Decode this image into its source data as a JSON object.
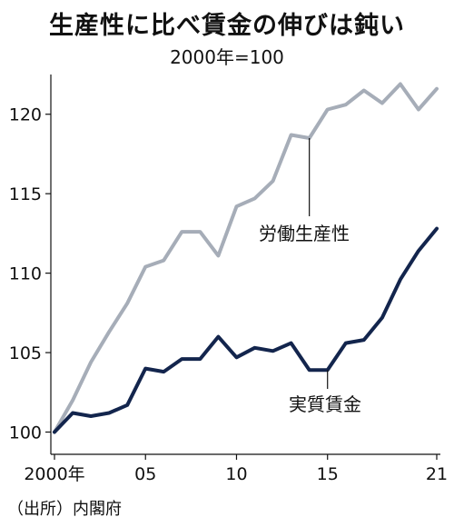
{
  "title": "生産性に比べ賃金の伸びは鈍い",
  "subtitle": "2000年=100",
  "source": "（出所）内閣府",
  "chart_data": {
    "type": "line",
    "title": "生産性に比べ賃金の伸びは鈍い",
    "subtitle": "2000年=100",
    "xlabel": "",
    "ylabel": "",
    "x": [
      2000,
      2001,
      2002,
      2003,
      2004,
      2005,
      2006,
      2007,
      2008,
      2009,
      2010,
      2011,
      2012,
      2013,
      2014,
      2015,
      2016,
      2017,
      2018,
      2019,
      2020,
      2021
    ],
    "xlim": [
      1999.8,
      2021.2
    ],
    "ylim": [
      98.6,
      122.5
    ],
    "x_ticks": [
      {
        "value": 2000,
        "label": "2000年"
      },
      {
        "value": 2005,
        "label": "05"
      },
      {
        "value": 2010,
        "label": "10"
      },
      {
        "value": 2015,
        "label": "15"
      },
      {
        "value": 2021,
        "label": "21"
      }
    ],
    "y_ticks": [
      100,
      105,
      110,
      115,
      120
    ],
    "grid": false,
    "series": [
      {
        "name": "労働生産性",
        "color": "#a6adb8",
        "values": [
          100.0,
          102.0,
          104.4,
          106.3,
          108.1,
          110.4,
          110.8,
          112.6,
          112.6,
          111.1,
          114.2,
          114.7,
          115.8,
          118.7,
          118.5,
          120.3,
          120.6,
          121.5,
          120.7,
          121.9,
          120.3,
          121.6
        ],
        "annotation": {
          "text": "労働生産性",
          "anchor_x": 2014
        }
      },
      {
        "name": "実質賃金",
        "color": "#13254d",
        "values": [
          100.0,
          101.2,
          101.0,
          101.2,
          101.7,
          104.0,
          103.8,
          104.6,
          104.6,
          106.0,
          104.7,
          105.3,
          105.1,
          105.6,
          103.9,
          103.9,
          105.6,
          105.8,
          107.2,
          109.6,
          111.4,
          112.8
        ],
        "annotation": {
          "text": "実質賃金",
          "anchor_x": 2015
        }
      }
    ]
  }
}
